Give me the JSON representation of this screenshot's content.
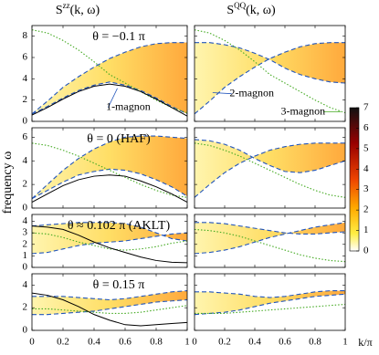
{
  "column_titles": [
    [
      "S",
      "zz",
      "(k, ω)"
    ],
    [
      "S",
      "QQ",
      "(k, ω)"
    ]
  ],
  "y_label": "frequency ω",
  "x_label": "k/π",
  "colorbar": {
    "lim": [
      0,
      7
    ],
    "ticks": [
      0,
      1,
      2,
      3,
      4,
      5,
      6,
      7
    ]
  },
  "chart_data": [
    {
      "type": "line",
      "title": "θ = −0.1 π",
      "annotations": [
        "1-magnon"
      ],
      "x": [
        0,
        0.1,
        0.2,
        0.3,
        0.4,
        0.5,
        0.6,
        0.7,
        0.8,
        0.9,
        1
      ],
      "xlim": [
        0,
        1
      ],
      "xticks": [
        0,
        0.2,
        0.4,
        0.6,
        0.8,
        1
      ],
      "ylim": [
        0,
        9
      ],
      "yticks": [
        0,
        2,
        4,
        6,
        8
      ],
      "fill_between": [
        0,
        1
      ],
      "series": [
        {
          "color": "#2255bb",
          "style": "dashed",
          "values": [
            0.7,
            1.4,
            2.2,
            2.9,
            3.4,
            3.7,
            3.4,
            2.9,
            2.2,
            1.4,
            0.7
          ]
        },
        {
          "color": "#2255bb",
          "style": "dashed",
          "values": [
            0.7,
            1.9,
            3.2,
            4.2,
            5.1,
            5.9,
            6.5,
            7.0,
            7.3,
            7.4,
            7.4
          ]
        },
        {
          "color": "#44aa22",
          "style": "dotted",
          "values": [
            8.6,
            8.3,
            7.6,
            6.7,
            5.6,
            4.4,
            3.6,
            2.8,
            2.0,
            1.3,
            0.8
          ]
        },
        {
          "color": "#000000",
          "style": "solid",
          "values": [
            0.6,
            1.3,
            2.1,
            2.8,
            3.3,
            3.5,
            3.3,
            2.8,
            2.1,
            1.3,
            0.5
          ]
        }
      ]
    },
    {
      "type": "line",
      "annotations": [
        "2-magnon",
        "3-magnon"
      ],
      "x": [
        0,
        0.1,
        0.2,
        0.3,
        0.4,
        0.5,
        0.6,
        0.7,
        0.8,
        0.9,
        1
      ],
      "xlim": [
        0,
        1
      ],
      "xticks": [
        0,
        0.2,
        0.4,
        0.6,
        0.8,
        1
      ],
      "ylim": [
        0,
        9
      ],
      "yticks": [
        0,
        2,
        4,
        6,
        8
      ],
      "fill_between": [
        0,
        1
      ],
      "series": [
        {
          "color": "#2255bb",
          "style": "dashed",
          "values": [
            0.7,
            1.9,
            3.2,
            4.2,
            5.1,
            5.9,
            6.5,
            7.0,
            7.3,
            7.4,
            7.4
          ]
        },
        {
          "color": "#2255bb",
          "style": "dashed",
          "values": [
            7.4,
            7.4,
            7.2,
            6.9,
            6.4,
            5.8,
            5.0,
            4.4,
            4.0,
            3.7,
            3.6
          ]
        },
        {
          "color": "#44aa22",
          "style": "dotted",
          "values": [
            8.6,
            8.3,
            7.6,
            6.7,
            5.6,
            4.4,
            3.6,
            2.8,
            2.0,
            1.3,
            0.8
          ]
        }
      ]
    },
    {
      "type": "line",
      "title": "θ = 0 (HAF)",
      "x": [
        0,
        0.1,
        0.2,
        0.3,
        0.4,
        0.5,
        0.6,
        0.7,
        0.8,
        0.9,
        1
      ],
      "xlim": [
        0,
        1
      ],
      "xticks": [
        0,
        0.2,
        0.4,
        0.6,
        0.8,
        1
      ],
      "ylim": [
        0,
        6.8
      ],
      "yticks": [
        0,
        2,
        4,
        6
      ],
      "fill_between": [
        0,
        1
      ],
      "series": [
        {
          "color": "#2255bb",
          "style": "dashed",
          "values": [
            0.8,
            1.5,
            2.2,
            2.8,
            3.1,
            3.3,
            3.2,
            2.9,
            2.4,
            1.8,
            1.0
          ]
        },
        {
          "color": "#2255bb",
          "style": "dashed",
          "values": [
            0.8,
            2.0,
            3.2,
            4.2,
            5.0,
            5.6,
            6.0,
            6.1,
            6.1,
            6.0,
            5.9
          ]
        },
        {
          "color": "#44aa22",
          "style": "dotted",
          "values": [
            5.5,
            5.3,
            4.9,
            4.4,
            3.8,
            3.2,
            2.6,
            2.0,
            1.5,
            1.1,
            0.9
          ]
        },
        {
          "color": "#000000",
          "style": "solid",
          "values": [
            0.5,
            1.2,
            1.9,
            2.4,
            2.7,
            2.8,
            2.7,
            2.3,
            1.8,
            1.2,
            0.5
          ]
        }
      ]
    },
    {
      "type": "line",
      "x": [
        0,
        0.1,
        0.2,
        0.3,
        0.4,
        0.5,
        0.6,
        0.7,
        0.8,
        0.9,
        1
      ],
      "xlim": [
        0,
        1
      ],
      "xticks": [
        0,
        0.2,
        0.4,
        0.6,
        0.8,
        1
      ],
      "ylim": [
        0,
        6.8
      ],
      "yticks": [
        0,
        2,
        4,
        6
      ],
      "fill_between": [
        0,
        1
      ],
      "series": [
        {
          "color": "#2255bb",
          "style": "dashed",
          "values": [
            0.9,
            2.0,
            3.0,
            3.8,
            4.4,
            4.9,
            5.2,
            5.4,
            5.5,
            5.5,
            5.5
          ]
        },
        {
          "color": "#2255bb",
          "style": "dashed",
          "values": [
            5.8,
            5.7,
            5.4,
            4.9,
            4.2,
            3.6,
            3.1,
            3.0,
            3.2,
            3.6,
            4.0
          ]
        },
        {
          "color": "#44aa22",
          "style": "dotted",
          "values": [
            5.5,
            5.3,
            4.9,
            4.4,
            3.8,
            3.2,
            2.6,
            2.0,
            1.5,
            1.1,
            0.9
          ]
        }
      ]
    },
    {
      "type": "line",
      "title": "θ ≈ 0.102 π (AKLT)",
      "x": [
        0,
        0.1,
        0.2,
        0.3,
        0.4,
        0.5,
        0.6,
        0.7,
        0.8,
        0.9,
        1
      ],
      "xlim": [
        0,
        1
      ],
      "xticks": [
        0,
        0.2,
        0.4,
        0.6,
        0.8,
        1
      ],
      "ylim": [
        0,
        4.6
      ],
      "yticks": [
        0,
        1,
        2,
        3,
        4
      ],
      "fill_between": [
        0,
        1
      ],
      "series": [
        {
          "color": "#2255bb",
          "style": "dashed",
          "values": [
            1.2,
            1.3,
            1.6,
            1.9,
            2.1,
            2.2,
            2.3,
            2.5,
            2.7,
            2.9,
            3.0
          ]
        },
        {
          "color": "#2255bb",
          "style": "dashed",
          "values": [
            3.6,
            3.7,
            3.8,
            3.9,
            3.9,
            3.9,
            3.8,
            3.5,
            3.0,
            2.5,
            2.3
          ]
        },
        {
          "color": "#44aa22",
          "style": "dotted",
          "values": [
            3.0,
            2.9,
            2.6,
            2.2,
            1.9,
            1.6,
            1.5,
            1.6,
            1.8,
            2.1,
            2.3
          ]
        },
        {
          "color": "#000000",
          "style": "solid",
          "values": [
            3.6,
            3.5,
            3.3,
            2.8,
            2.2,
            1.7,
            1.3,
            0.9,
            0.6,
            0.45,
            0.41
          ]
        }
      ]
    },
    {
      "type": "line",
      "x": [
        0,
        0.1,
        0.2,
        0.3,
        0.4,
        0.5,
        0.6,
        0.7,
        0.8,
        0.9,
        1
      ],
      "xlim": [
        0,
        1
      ],
      "xticks": [
        0,
        0.2,
        0.4,
        0.6,
        0.8,
        1
      ],
      "ylim": [
        0,
        4.6
      ],
      "yticks": [
        0,
        1,
        2,
        3,
        4
      ],
      "fill_between": [
        0,
        1
      ],
      "series": [
        {
          "color": "#2255bb",
          "style": "dashed",
          "values": [
            1.2,
            1.3,
            1.5,
            1.8,
            2.2,
            2.6,
            2.9,
            3.2,
            3.5,
            3.7,
            3.9
          ]
        },
        {
          "color": "#2255bb",
          "style": "dashed",
          "values": [
            3.9,
            3.9,
            3.8,
            3.6,
            3.4,
            3.2,
            3.0,
            2.9,
            2.9,
            3.0,
            3.1
          ]
        },
        {
          "color": "#44aa22",
          "style": "dotted",
          "values": [
            3.3,
            3.2,
            3.0,
            2.7,
            2.3,
            1.9,
            1.5,
            1.1,
            0.8,
            0.6,
            0.5
          ]
        }
      ]
    },
    {
      "type": "line",
      "title": "θ = 0.15 π",
      "x": [
        0,
        0.1,
        0.2,
        0.3,
        0.4,
        0.5,
        0.6,
        0.7,
        0.8,
        0.9,
        1
      ],
      "xlim": [
        0,
        1
      ],
      "xticks": [
        0,
        0.2,
        0.4,
        0.6,
        0.8,
        1
      ],
      "ylim": [
        0,
        5
      ],
      "yticks": [
        0,
        2,
        4
      ],
      "fill_between": [
        0,
        1
      ],
      "series": [
        {
          "color": "#2255bb",
          "style": "dashed",
          "values": [
            1.4,
            1.4,
            1.5,
            1.6,
            1.7,
            1.9,
            2.1,
            2.3,
            2.5,
            2.6,
            2.7
          ]
        },
        {
          "color": "#2255bb",
          "style": "dashed",
          "values": [
            3.0,
            3.0,
            3.0,
            2.9,
            2.8,
            2.7,
            2.8,
            3.0,
            3.2,
            3.4,
            3.5
          ]
        },
        {
          "color": "#44aa22",
          "style": "dotted",
          "values": [
            1.9,
            1.9,
            1.8,
            1.7,
            1.6,
            1.5,
            1.5,
            1.6,
            1.8,
            2.0,
            2.2
          ]
        },
        {
          "color": "#000000",
          "style": "solid",
          "values": [
            3.3,
            3.1,
            2.7,
            2.1,
            1.4,
            0.9,
            0.5,
            0.4,
            0.5,
            0.6,
            0.7
          ]
        }
      ]
    },
    {
      "type": "line",
      "x": [
        0,
        0.1,
        0.2,
        0.3,
        0.4,
        0.5,
        0.6,
        0.7,
        0.8,
        0.9,
        1
      ],
      "xlim": [
        0,
        1
      ],
      "xticks": [
        0,
        0.2,
        0.4,
        0.6,
        0.8,
        1
      ],
      "ylim": [
        0,
        5
      ],
      "yticks": [
        0,
        2,
        4
      ],
      "fill_between": [
        0,
        1
      ],
      "series": [
        {
          "color": "#2255bb",
          "style": "dashed",
          "values": [
            1.4,
            1.5,
            1.6,
            1.8,
            2.1,
            2.4,
            2.6,
            2.8,
            3.0,
            3.1,
            3.2
          ]
        },
        {
          "color": "#2255bb",
          "style": "dashed",
          "values": [
            3.4,
            3.4,
            3.3,
            3.2,
            3.0,
            2.9,
            3.0,
            3.2,
            3.4,
            3.5,
            3.5
          ]
        },
        {
          "color": "#44aa22",
          "style": "dotted",
          "values": [
            1.5,
            1.5,
            1.5,
            1.6,
            1.7,
            1.8,
            1.9,
            2.0,
            2.1,
            2.2,
            2.3
          ]
        }
      ]
    }
  ]
}
